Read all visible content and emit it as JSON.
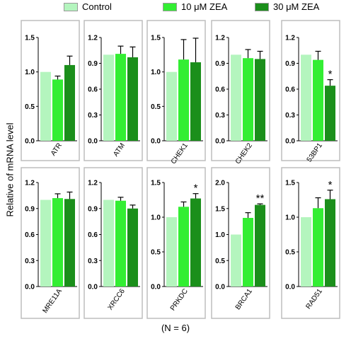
{
  "legend": {
    "items": [
      {
        "label": "Control",
        "color": "#b4f5be"
      },
      {
        "label": "10 μM ZEA",
        "color": "#33ee33"
      },
      {
        "label": "30 μM ZEA",
        "color": "#1b8f1b"
      }
    ]
  },
  "ylabel": "Relative of mRNA level",
  "footnote": "(N = 6)",
  "colors": {
    "control": "#b4f5be",
    "zea10": "#33ee33",
    "zea30": "#1b8f1b",
    "frame": "#bdbdbd",
    "error": "#000000"
  },
  "chart_data": [
    {
      "type": "bar",
      "gene": "ATR",
      "ylim": [
        0,
        1.5
      ],
      "ticks": [
        "0.0",
        "0.5",
        "1.0",
        "1.5"
      ],
      "values": [
        1.0,
        0.89,
        1.1
      ],
      "errors": [
        0,
        0.05,
        0.13
      ],
      "annotations": [
        "",
        "",
        ""
      ]
    },
    {
      "type": "bar",
      "gene": "ATM",
      "ylim": [
        0,
        1.2
      ],
      "ticks": [
        "0.0",
        "0.3",
        "0.6",
        "0.9",
        "1.2"
      ],
      "values": [
        1.0,
        1.01,
        0.97
      ],
      "errors": [
        0,
        0.09,
        0.12
      ],
      "annotations": [
        "",
        "",
        ""
      ]
    },
    {
      "type": "bar",
      "gene": "CHEK1",
      "ylim": [
        0,
        1.5
      ],
      "ticks": [
        "0.0",
        "0.5",
        "1.0",
        "1.5"
      ],
      "values": [
        1.0,
        1.18,
        1.14
      ],
      "errors": [
        0,
        0.29,
        0.35
      ],
      "annotations": [
        "",
        "",
        ""
      ]
    },
    {
      "type": "bar",
      "gene": "CHEK2",
      "ylim": [
        0,
        1.2
      ],
      "ticks": [
        "0.0",
        "0.3",
        "0.6",
        "0.9",
        "1.2"
      ],
      "values": [
        1.0,
        0.96,
        0.95
      ],
      "errors": [
        0,
        0.1,
        0.09
      ],
      "annotations": [
        "",
        "",
        ""
      ]
    },
    {
      "type": "bar",
      "gene": "53BP1",
      "ylim": [
        0,
        1.2
      ],
      "ticks": [
        "0.0",
        "0.3",
        "0.6",
        "0.9",
        "1.2"
      ],
      "values": [
        1.0,
        0.94,
        0.64
      ],
      "errors": [
        0,
        0.1,
        0.07
      ],
      "annotations": [
        "",
        "",
        "*"
      ]
    },
    {
      "type": "bar",
      "gene": "MRE11A",
      "ylim": [
        0,
        1.2
      ],
      "ticks": [
        "0.0",
        "0.3",
        "0.6",
        "0.9",
        "1.2"
      ],
      "values": [
        1.0,
        1.02,
        1.01
      ],
      "errors": [
        0,
        0.05,
        0.08
      ],
      "annotations": [
        "",
        "",
        ""
      ]
    },
    {
      "type": "bar",
      "gene": "XRCC6",
      "ylim": [
        0,
        1.2
      ],
      "ticks": [
        "0.0",
        "0.3",
        "0.6",
        "0.9",
        "1.2"
      ],
      "values": [
        1.0,
        0.99,
        0.9
      ],
      "errors": [
        0,
        0.04,
        0.04
      ],
      "annotations": [
        "",
        "",
        ""
      ]
    },
    {
      "type": "bar",
      "gene": "PRKDC",
      "ylim": [
        0,
        1.5
      ],
      "ticks": [
        "0.0",
        "0.5",
        "1.0",
        "1.5"
      ],
      "values": [
        1.0,
        1.15,
        1.27
      ],
      "errors": [
        0,
        0.07,
        0.07
      ],
      "annotations": [
        "",
        "",
        "*"
      ]
    },
    {
      "type": "bar",
      "gene": "BRCA1",
      "ylim": [
        0,
        2.0
      ],
      "ticks": [
        "0.0",
        "0.5",
        "1.0",
        "1.5",
        "2.0"
      ],
      "values": [
        1.0,
        1.32,
        1.57
      ],
      "errors": [
        0,
        0.1,
        0.02
      ],
      "annotations": [
        "",
        "",
        "**"
      ]
    },
    {
      "type": "bar",
      "gene": "RAD51",
      "ylim": [
        0,
        1.5
      ],
      "ticks": [
        "0.0",
        "0.5",
        "1.0",
        "1.5"
      ],
      "values": [
        1.0,
        1.13,
        1.26
      ],
      "errors": [
        0,
        0.15,
        0.13
      ],
      "annotations": [
        "",
        "",
        "*"
      ]
    }
  ]
}
